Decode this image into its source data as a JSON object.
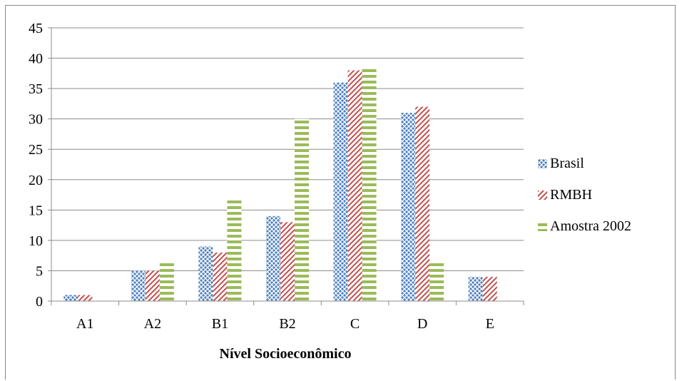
{
  "chart_data": {
    "type": "bar",
    "title": "",
    "xlabel": "Nível Socioeconômico",
    "ylabel": "",
    "categories": [
      "A1",
      "A2",
      "B1",
      "B2",
      "C",
      "D",
      "E"
    ],
    "series": [
      {
        "name": "Brasil",
        "values": [
          1,
          5,
          9,
          14,
          36,
          31,
          4
        ],
        "color": "#4f81bd",
        "pattern": "crosshatch"
      },
      {
        "name": "RMBH",
        "values": [
          1,
          5,
          8,
          13,
          38,
          32,
          4
        ],
        "color": "#c0504d",
        "pattern": "diagonal"
      },
      {
        "name": "Amostra 2002",
        "values": [
          0,
          6.5,
          17,
          30,
          38.5,
          6.5,
          0
        ],
        "color": "#9bbb59",
        "pattern": "horizontal"
      }
    ],
    "ylim": [
      0,
      45
    ],
    "yticks": [
      0,
      5,
      10,
      15,
      20,
      25,
      30,
      35,
      40,
      45
    ],
    "grid": true,
    "legend_position": "right"
  }
}
